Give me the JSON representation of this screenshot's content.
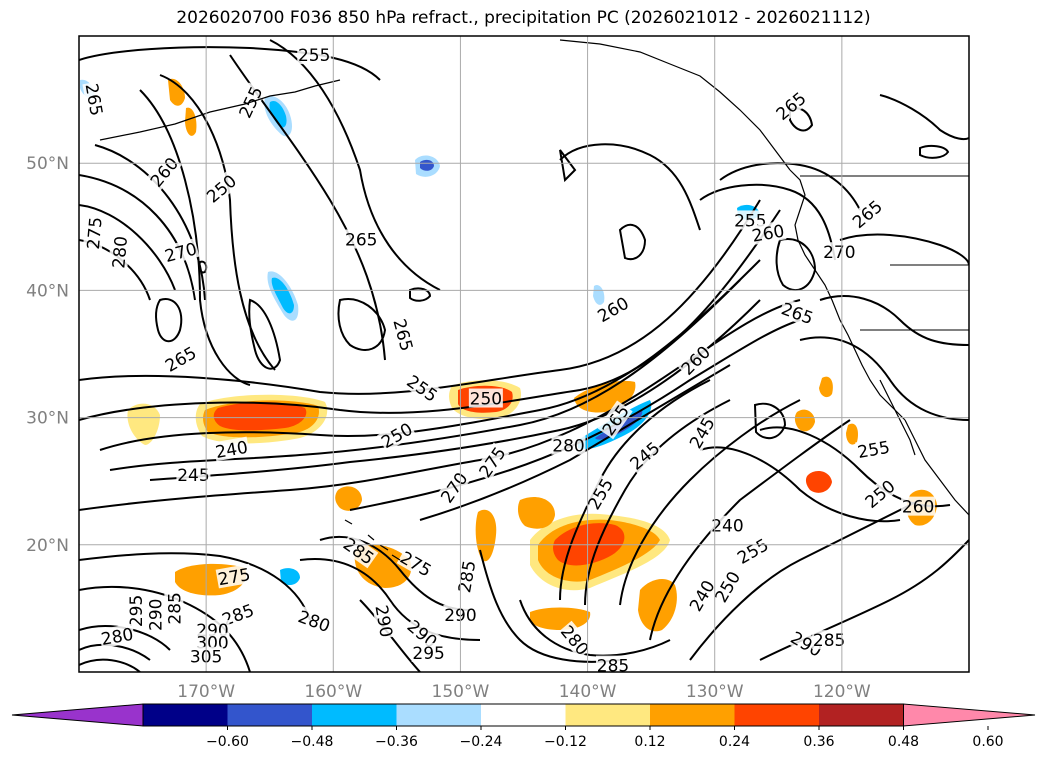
{
  "title": "2026020700 F036 850 hPa refract., precipitation PC (2026021012 - 2026021112)",
  "map": {
    "lat_labels": [
      "50°N",
      "40°N",
      "30°N",
      "20°N"
    ],
    "lon_labels": [
      "170°W",
      "160°W",
      "150°W",
      "140°W",
      "130°W",
      "120°W"
    ],
    "contour_labels": [
      {
        "text": "255",
        "lon": -161.5,
        "lat": 58.5,
        "rot": 0
      },
      {
        "text": "255",
        "lon": -166.5,
        "lat": 54.8,
        "rot": 65
      },
      {
        "text": "265",
        "lon": -178.8,
        "lat": 55.0,
        "rot": -80
      },
      {
        "text": "260",
        "lon": -173.3,
        "lat": 49.3,
        "rot": 50
      },
      {
        "text": "250",
        "lon": -168.8,
        "lat": 48.0,
        "rot": 40
      },
      {
        "text": "275",
        "lon": -178.8,
        "lat": 44.5,
        "rot": 85
      },
      {
        "text": "280",
        "lon": -176.8,
        "lat": 43.0,
        "rot": 85
      },
      {
        "text": "270",
        "lon": -172.0,
        "lat": 43.0,
        "rot": 15
      },
      {
        "text": "265",
        "lon": -157.8,
        "lat": 44.0,
        "rot": 0
      },
      {
        "text": "265",
        "lon": -172.0,
        "lat": 34.6,
        "rot": 30
      },
      {
        "text": "265",
        "lon": -154.5,
        "lat": 36.5,
        "rot": -75
      },
      {
        "text": "260",
        "lon": -138.0,
        "lat": 38.5,
        "rot": 30
      },
      {
        "text": "265",
        "lon": -124.0,
        "lat": 54.5,
        "rot": 40
      },
      {
        "text": "255",
        "lon": -127.2,
        "lat": 45.5,
        "rot": 0
      },
      {
        "text": "260",
        "lon": -125.8,
        "lat": 44.5,
        "rot": 10
      },
      {
        "text": "265",
        "lon": -118.0,
        "lat": 46.0,
        "rot": 40
      },
      {
        "text": "270",
        "lon": -120.2,
        "lat": 43.0,
        "rot": 0
      },
      {
        "text": "265",
        "lon": -123.5,
        "lat": 38.2,
        "rot": -20
      },
      {
        "text": "255",
        "lon": -153.0,
        "lat": 32.3,
        "rot": -35
      },
      {
        "text": "250",
        "lon": -148.0,
        "lat": 31.5,
        "rot": 0
      },
      {
        "text": "250",
        "lon": -155.0,
        "lat": 28.6,
        "rot": 30
      },
      {
        "text": "240",
        "lon": -168.0,
        "lat": 27.5,
        "rot": 10
      },
      {
        "text": "245",
        "lon": -171.0,
        "lat": 25.5,
        "rot": 0
      },
      {
        "text": "270",
        "lon": -150.5,
        "lat": 24.5,
        "rot": 55
      },
      {
        "text": "275",
        "lon": -147.5,
        "lat": 26.5,
        "rot": 55
      },
      {
        "text": "280",
        "lon": -141.5,
        "lat": 27.8,
        "rot": 0
      },
      {
        "text": "265",
        "lon": -137.8,
        "lat": 29.8,
        "rot": 55
      },
      {
        "text": "260",
        "lon": -131.5,
        "lat": 34.5,
        "rot": 45
      },
      {
        "text": "245",
        "lon": -135.5,
        "lat": 27.0,
        "rot": 40
      },
      {
        "text": "245",
        "lon": -131.0,
        "lat": 28.8,
        "rot": 60
      },
      {
        "text": "255",
        "lon": -139.0,
        "lat": 24.0,
        "rot": 60
      },
      {
        "text": "240",
        "lon": -129.0,
        "lat": 21.5,
        "rot": 0
      },
      {
        "text": "255",
        "lon": -127.0,
        "lat": 19.5,
        "rot": 30
      },
      {
        "text": "250",
        "lon": -117.0,
        "lat": 24.0,
        "rot": 40
      },
      {
        "text": "255",
        "lon": -117.5,
        "lat": 27.5,
        "rot": 10
      },
      {
        "text": "260",
        "lon": -114.0,
        "lat": 23.0,
        "rot": 0
      },
      {
        "text": "240",
        "lon": -131.0,
        "lat": 16.0,
        "rot": 60
      },
      {
        "text": "250",
        "lon": -129.0,
        "lat": 16.7,
        "rot": 60
      },
      {
        "text": "285",
        "lon": -158.0,
        "lat": 19.5,
        "rot": -35
      },
      {
        "text": "275",
        "lon": -153.5,
        "lat": 18.5,
        "rot": -30
      },
      {
        "text": "285",
        "lon": -149.5,
        "lat": 17.5,
        "rot": 80
      },
      {
        "text": "275",
        "lon": -167.8,
        "lat": 17.5,
        "rot": 10
      },
      {
        "text": "285",
        "lon": -167.5,
        "lat": 14.5,
        "rot": 20
      },
      {
        "text": "280",
        "lon": -161.5,
        "lat": 14.0,
        "rot": -20
      },
      {
        "text": "290",
        "lon": -156.0,
        "lat": 14.0,
        "rot": -80
      },
      {
        "text": "290",
        "lon": -150.0,
        "lat": 14.5,
        "rot": 0
      },
      {
        "text": "290",
        "lon": -153.0,
        "lat": 13.0,
        "rot": -40
      },
      {
        "text": "295",
        "lon": -152.5,
        "lat": 11.5,
        "rot": 0
      },
      {
        "text": "280",
        "lon": -141.0,
        "lat": 12.5,
        "rot": -50
      },
      {
        "text": "285",
        "lon": -138.0,
        "lat": 10.5,
        "rot": 0
      },
      {
        "text": "295",
        "lon": -175.5,
        "lat": 14.8,
        "rot": 90
      },
      {
        "text": "290",
        "lon": -174.0,
        "lat": 14.5,
        "rot": 90
      },
      {
        "text": "285",
        "lon": -172.5,
        "lat": 15.0,
        "rot": 90
      },
      {
        "text": "290",
        "lon": -169.5,
        "lat": 13.3,
        "rot": 0
      },
      {
        "text": "280",
        "lon": -177.0,
        "lat": 12.8,
        "rot": 10
      },
      {
        "text": "300",
        "lon": -169.5,
        "lat": 12.3,
        "rot": 0
      },
      {
        "text": "305",
        "lon": -170.0,
        "lat": 11.2,
        "rot": 0
      },
      {
        "text": "290",
        "lon": -122.8,
        "lat": 12.2,
        "rot": -30
      },
      {
        "text": "285",
        "lon": -121.0,
        "lat": 12.5,
        "rot": 0
      }
    ]
  },
  "colorbar": {
    "tick_labels": [
      "−0.60",
      "−0.48",
      "−0.36",
      "−0.24",
      "−0.12",
      "0.12",
      "0.24",
      "0.36",
      "0.48",
      "0.60"
    ],
    "colors": [
      "#9933cc",
      "#000088",
      "#3355cc",
      "#00bbff",
      "#aaddff",
      "#ffffff",
      "#ffe880",
      "#ffa000",
      "#ff4400",
      "#b22222",
      "#ff88aa"
    ]
  },
  "colors": {
    "map_border": "#000000",
    "grid": "#aaaaaa",
    "axis_label": "#808080"
  }
}
